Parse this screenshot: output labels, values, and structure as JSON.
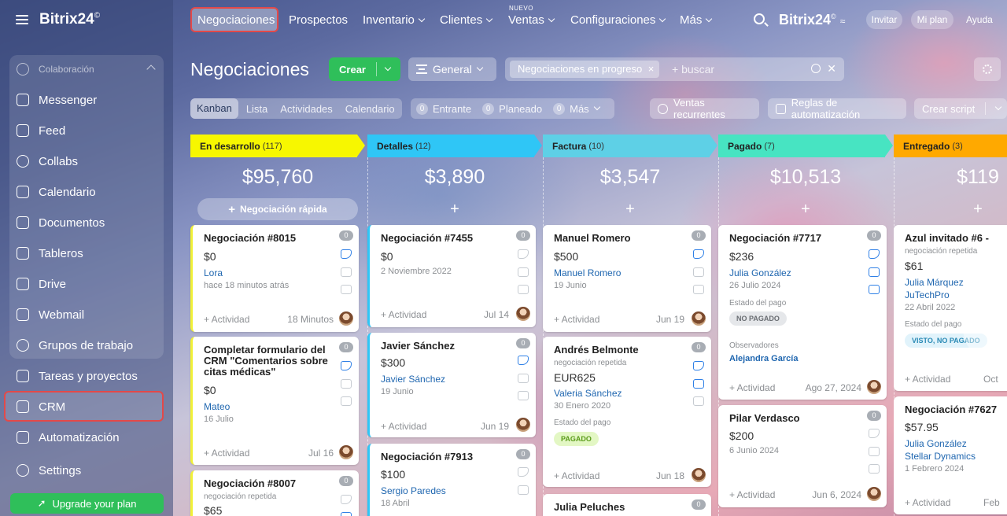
{
  "brand": {
    "name": "Bitrix24",
    "mark": "©"
  },
  "sidebar": {
    "group_label": "Colaboración",
    "items": [
      {
        "label": "Messenger",
        "icon": "messenger-icon"
      },
      {
        "label": "Feed",
        "icon": "feed-icon"
      },
      {
        "label": "Collabs",
        "icon": "collabs-icon"
      },
      {
        "label": "Calendario",
        "icon": "calendar-icon"
      },
      {
        "label": "Documentos",
        "icon": "documents-icon"
      },
      {
        "label": "Tableros",
        "icon": "boards-icon"
      },
      {
        "label": "Drive",
        "icon": "drive-icon"
      },
      {
        "label": "Webmail",
        "icon": "mail-icon"
      },
      {
        "label": "Grupos de trabajo",
        "icon": "groups-icon"
      }
    ],
    "outer": [
      {
        "label": "Tareas y proyectos",
        "icon": "tasks-icon"
      },
      {
        "label": "CRM",
        "icon": "crm-icon"
      },
      {
        "label": "Automatización",
        "icon": "automation-icon"
      },
      {
        "label": "Settings",
        "icon": "settings-icon"
      }
    ],
    "upgrade": "Upgrade your plan"
  },
  "topnav": {
    "items": [
      "Negociaciones",
      "Prospectos",
      "Inventario",
      "Clientes",
      "Ventas",
      "Configuraciones",
      "Más"
    ],
    "new_badge": "NUEVO",
    "right_brand": "Bitrix24",
    "invite": "Invitar",
    "plan": "Mi plan",
    "help": "Ayuda"
  },
  "toolbar": {
    "title": "Negociaciones",
    "create": "Crear",
    "pipeline": "General",
    "filter_tag": "Negociaciones en progreso",
    "search_placeholder": "+ buscar"
  },
  "views": [
    "Kanban",
    "Lista",
    "Actividades",
    "Calendario"
  ],
  "counters": [
    {
      "n": "0",
      "label": "Entrante"
    },
    {
      "n": "0",
      "label": "Planeado"
    },
    {
      "n": "0",
      "label": "Más"
    }
  ],
  "buttons": {
    "recurring": "Ventas recurrentes",
    "automation": "Reglas de automatización",
    "script": "Crear script"
  },
  "colors": {
    "stage1": "#f7f700",
    "stage2": "#2fc6f6",
    "stage3": "#5ed0e6",
    "stage4": "#47e4c2",
    "stage5": "#ffa900",
    "accent_green": "#2fbf5a",
    "highlight_red": "#e34949"
  },
  "stages": [
    {
      "name": "En desarrollo",
      "count": "(117)",
      "total": "$95,760",
      "quick": "Negociación rápida"
    },
    {
      "name": "Detalles",
      "count": "(12)",
      "total": "$3,890"
    },
    {
      "name": "Factura",
      "count": "(10)",
      "total": "$3,547"
    },
    {
      "name": "Pagado",
      "count": "(7)",
      "total": "$10,513"
    },
    {
      "name": "Entregado",
      "count": "(3)",
      "total": "$119"
    }
  ],
  "cards": {
    "c1a": {
      "title": "Negociación #8015",
      "badge": "0",
      "amount": "$0",
      "contact": "Lora",
      "date": "hace 18 minutos atrás",
      "act": "+ Actividad",
      "when": "18 Minutos"
    },
    "c1b": {
      "title": "Completar formulario del CRM \"Comentarios sobre citas médicas\"",
      "badge": "0",
      "amount": "$0",
      "contact": "Mateo",
      "date": "16 Julio",
      "act": "+ Actividad",
      "when": "Jul 16"
    },
    "c1c": {
      "title": "Negociación #8007",
      "badge": "0",
      "sub": "negociación repetida",
      "amount": "$65"
    },
    "c2a": {
      "title": "Negociación #7455",
      "badge": "0",
      "amount": "$0",
      "date": "2 Noviembre 2022",
      "act": "+ Actividad",
      "when": "Jul 14"
    },
    "c2b": {
      "title": "Javier Sánchez",
      "badge": "0",
      "amount": "$300",
      "contact": "Javier Sánchez",
      "date": "19 Junio",
      "act": "+ Actividad",
      "when": "Jun 19"
    },
    "c2c": {
      "title": "Negociación #7913",
      "badge": "0",
      "amount": "$100",
      "contact": "Sergio Paredes",
      "date": "18 Abril"
    },
    "c3a": {
      "title": "Manuel Romero",
      "badge": "0",
      "amount": "$500",
      "contact": "Manuel Romero",
      "date": "19 Junio",
      "act": "+ Actividad",
      "when": "Jun 19"
    },
    "c3b": {
      "title": "Andrés Belmonte",
      "badge": "0",
      "sub": "negociación repetida",
      "amount": "EUR625",
      "contact": "Valeria Sánchez",
      "date": "30 Enero 2020",
      "pay_label": "Estado del pago",
      "pay": "PAGADO",
      "act": "+ Actividad",
      "when": "Jun 18"
    },
    "c3c": {
      "title": "Julia Peluches",
      "badge": "0"
    },
    "c4a": {
      "title": "Negociación #7717",
      "badge": "0",
      "amount": "$236",
      "contact": "Julia González",
      "date": "26 Julio 2024",
      "pay_label": "Estado del pago",
      "pay": "NO PAGADO",
      "obs_label": "Observadores",
      "obs": "Alejandra García",
      "act": "+ Actividad",
      "when": "Ago 27, 2024"
    },
    "c4b": {
      "title": "Pilar Verdasco",
      "badge": "0",
      "amount": "$200",
      "date": "6 Junio 2024",
      "act": "+ Actividad",
      "when": "Jun 6, 2024"
    },
    "c5a": {
      "title": "Azul invitado #6 -",
      "sub": "negociación repetida",
      "amount": "$61",
      "contact": "Julia Márquez",
      "company": "JuTechPro",
      "date": "22 Abril 2022",
      "pay_label": "Estado del pago",
      "pay": "VISTO, NO PAGADO",
      "act": "+ Actividad",
      "when": "Oct"
    },
    "c5b": {
      "title": "Negociación #7627",
      "amount": "$57.95",
      "contact": "Julia González",
      "company": "Stellar Dynamics",
      "date": "1 Febrero 2024",
      "act": "+ Actividad",
      "when": "Feb"
    }
  }
}
